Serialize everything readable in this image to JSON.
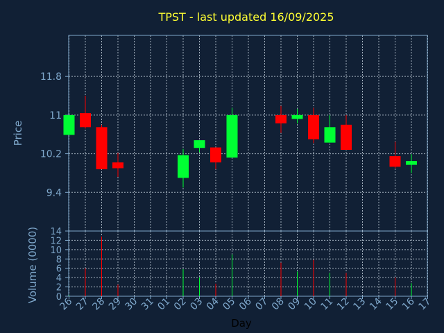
{
  "title": "TPST - last updated 16/09/2025",
  "colors": {
    "up": "#00ff33",
    "down": "#ff0000",
    "background": "#112035",
    "axis": "#7fa8cc",
    "title": "#ffff33"
  },
  "chart_data": {
    "type": "candlestick",
    "ylabel": "Price",
    "volume_label": "Volume (0000)",
    "xlabel": "Day",
    "price_ticks": [
      9.4,
      10.2,
      11,
      11.8
    ],
    "price_tick_labels": [
      "9.4",
      "10.2",
      "11",
      "11.8"
    ],
    "price_range": [
      8.6,
      12.65
    ],
    "volume_ticks": [
      0,
      2,
      4,
      6,
      8,
      10,
      12,
      14
    ],
    "volume_range": [
      0,
      14
    ],
    "x_labels": [
      "26",
      "27",
      "28",
      "29",
      "30",
      "31",
      "01",
      "02",
      "03",
      "04",
      "05",
      "06",
      "07",
      "08",
      "09",
      "10",
      "11",
      "12",
      "13",
      "14",
      "15",
      "16",
      "17"
    ],
    "candles": [
      {
        "day": "26",
        "open": 10.59,
        "close": 11.0,
        "high": 11.0,
        "low": 10.59,
        "volume": 0.2
      },
      {
        "day": "27",
        "open": 11.04,
        "close": 10.75,
        "high": 11.4,
        "low": 10.72,
        "volume": 6.0
      },
      {
        "day": "28",
        "open": 10.75,
        "close": 9.88,
        "high": 10.8,
        "low": 9.88,
        "volume": 12.8
      },
      {
        "day": "29",
        "open": 10.02,
        "close": 9.9,
        "high": 10.22,
        "low": 9.72,
        "volume": 2.5
      },
      {
        "day": "02",
        "open": 9.7,
        "close": 10.17,
        "high": 10.3,
        "low": 9.5,
        "volume": 5.8
      },
      {
        "day": "03",
        "open": 10.32,
        "close": 10.48,
        "high": 10.48,
        "low": 10.23,
        "volume": 4.0
      },
      {
        "day": "04",
        "open": 10.33,
        "close": 10.02,
        "high": 10.33,
        "low": 9.88,
        "volume": 2.7
      },
      {
        "day": "05",
        "open": 10.12,
        "close": 11.0,
        "high": 11.15,
        "low": 10.12,
        "volume": 9.0
      },
      {
        "day": "08",
        "open": 11.0,
        "close": 10.83,
        "high": 11.19,
        "low": 10.63,
        "volume": 7.2
      },
      {
        "day": "09",
        "open": 10.92,
        "close": 11.0,
        "high": 11.13,
        "low": 10.83,
        "volume": 5.3
      },
      {
        "day": "10",
        "open": 11.0,
        "close": 10.5,
        "high": 11.15,
        "low": 10.42,
        "volume": 7.8
      },
      {
        "day": "11",
        "open": 10.43,
        "close": 10.75,
        "high": 11.0,
        "low": 10.43,
        "volume": 5.0
      },
      {
        "day": "12",
        "open": 10.8,
        "close": 10.28,
        "high": 11.0,
        "low": 10.28,
        "volume": 5.0
      },
      {
        "day": "15",
        "open": 10.15,
        "close": 9.93,
        "high": 10.45,
        "low": 9.9,
        "volume": 4.0
      },
      {
        "day": "16",
        "open": 9.97,
        "close": 10.05,
        "high": 10.19,
        "low": 9.8,
        "volume": 2.8
      }
    ]
  }
}
